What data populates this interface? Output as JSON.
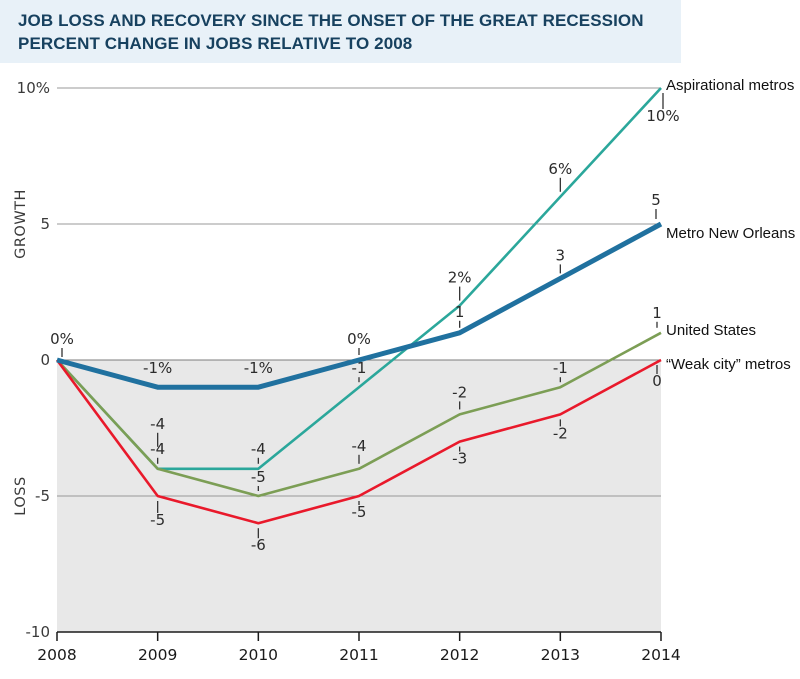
{
  "colors": {
    "header_bg": "#e8f1f8",
    "header_text": "#17415f",
    "plot_shade": "#e8e8e8",
    "gridline": "#999999",
    "zero_line": "#7d7d7d",
    "axis_line": "#1a1a1a",
    "annotation_tick": "#333333",
    "aspirational": "#2ba79b",
    "new_orleans": "#20719f",
    "united_states": "#7c9e55",
    "weak_city": "#e9192b"
  },
  "chart_data": {
    "type": "line",
    "title": "JOB LOSS AND RECOVERY SINCE THE ONSET OF THE GREAT RECESSION",
    "subtitle": "PERCENT CHANGE IN JOBS RELATIVE TO 2008",
    "x": [
      2008,
      2009,
      2010,
      2011,
      2012,
      2013,
      2014
    ],
    "ylim": [
      -10,
      10
    ],
    "grid_values": [
      10,
      5,
      0,
      -5
    ],
    "y_ticks": [
      {
        "value": 10,
        "label": "10%"
      },
      {
        "value": 5,
        "label": "5"
      },
      {
        "value": 0,
        "label": "0"
      },
      {
        "value": -5,
        "label": "-5"
      },
      {
        "value": -10,
        "label": "-10"
      }
    ],
    "axis_zones": [
      {
        "id": "growth",
        "label": "GROWTH",
        "center_value": 5
      },
      {
        "id": "loss",
        "label": "LOSS",
        "center_value": -5
      }
    ],
    "legend_position": "right-direct-labels",
    "series": [
      {
        "id": "aspirational-metros",
        "name": "Aspirational metros",
        "color_key": "aspirational",
        "width": 2.6,
        "label_y_value": 9.93,
        "values": [
          0,
          -4,
          -4,
          -1,
          2,
          6,
          10
        ]
      },
      {
        "id": "united-states",
        "name": "United States",
        "color_key": "united_states",
        "width": 2.6,
        "label_y_value": 0.92,
        "values": [
          0,
          -4,
          -5,
          -4,
          -2,
          -1,
          1
        ]
      },
      {
        "id": "weak-city-metros",
        "name": "“Weak city” metros",
        "color_key": "weak_city",
        "width": 2.6,
        "label_y_value": -0.33,
        "values": [
          0,
          -5,
          -6,
          -5,
          -3,
          -2,
          0
        ]
      },
      {
        "id": "metro-new-orleans",
        "name": "Metro New Orleans",
        "color_key": "new_orleans",
        "width": 5,
        "label_y_value": 4.49,
        "values": [
          0,
          -1,
          -1,
          0,
          1,
          3,
          5
        ]
      }
    ],
    "annotations": [
      {
        "x": 2008,
        "y": 0,
        "text": "0%",
        "side": "above",
        "offset": 16,
        "tick": true,
        "tick_len": 9,
        "dx": 5
      },
      {
        "x": 2009,
        "y": -1,
        "text": "-1%",
        "side": "above",
        "offset": 14,
        "tick": false
      },
      {
        "x": 2010,
        "y": -1,
        "text": "-1%",
        "side": "above",
        "offset": 14,
        "tick": false
      },
      {
        "x": 2011,
        "y": 0,
        "text": "0%",
        "side": "above",
        "offset": 16,
        "tick": true
      },
      {
        "x": 2012,
        "y": 1,
        "text": "1",
        "side": "above",
        "offset": 16,
        "tick": true
      },
      {
        "x": 2013,
        "y": 3,
        "text": "3",
        "side": "above",
        "offset": 18,
        "tick": true
      },
      {
        "x": 2014,
        "y": 5,
        "text": "5",
        "side": "above",
        "offset": 19,
        "tick": true,
        "dx": -5
      },
      {
        "x": 2009,
        "y": -4,
        "text": "-4",
        "side": "above",
        "offset": 40,
        "tick": true,
        "tick_len": 14
      },
      {
        "x": 2009,
        "y": -4,
        "text": "-4",
        "side": "above",
        "offset": 15,
        "tick": true
      },
      {
        "x": 2010,
        "y": -4,
        "text": "-4",
        "side": "above",
        "offset": 15,
        "tick": true
      },
      {
        "x": 2010,
        "y": -5,
        "text": "-5",
        "side": "above",
        "offset": 14,
        "tick": true
      },
      {
        "x": 2011,
        "y": -1,
        "text": "-1",
        "side": "above",
        "offset": 14,
        "tick": true
      },
      {
        "x": 2011,
        "y": -4,
        "text": "-4",
        "side": "above",
        "offset": 18,
        "tick": true
      },
      {
        "x": 2012,
        "y": 2,
        "text": "2%",
        "side": "above",
        "offset": 23,
        "tick": true
      },
      {
        "x": 2012,
        "y": -2,
        "text": "-2",
        "side": "above",
        "offset": 17,
        "tick": true
      },
      {
        "x": 2013,
        "y": 6,
        "text": "6%",
        "side": "above",
        "offset": 23,
        "tick": true
      },
      {
        "x": 2013,
        "y": -1,
        "text": "-1",
        "side": "above",
        "offset": 14,
        "tick": true
      },
      {
        "x": 2014,
        "y": 10,
        "text": "10%",
        "side": "below",
        "offset": 33,
        "tick": true,
        "dx": 2
      },
      {
        "x": 2014,
        "y": 1,
        "text": "1",
        "side": "above",
        "offset": 15,
        "tick": true,
        "dx": -4
      },
      {
        "x": 2009,
        "y": -5,
        "text": "-5",
        "side": "below",
        "offset": 29,
        "tick": true
      },
      {
        "x": 2010,
        "y": -6,
        "text": "-6",
        "side": "below",
        "offset": 27,
        "tick": true
      },
      {
        "x": 2011,
        "y": -5,
        "text": "-5",
        "side": "below",
        "offset": 21,
        "tick": true
      },
      {
        "x": 2012,
        "y": -3,
        "text": "-3",
        "side": "below",
        "offset": 22,
        "tick": true
      },
      {
        "x": 2013,
        "y": -2,
        "text": "-2",
        "side": "below",
        "offset": 24,
        "tick": true
      },
      {
        "x": 2014,
        "y": 0,
        "text": "0",
        "side": "below",
        "offset": 26,
        "tick": true,
        "dx": -4
      }
    ]
  }
}
